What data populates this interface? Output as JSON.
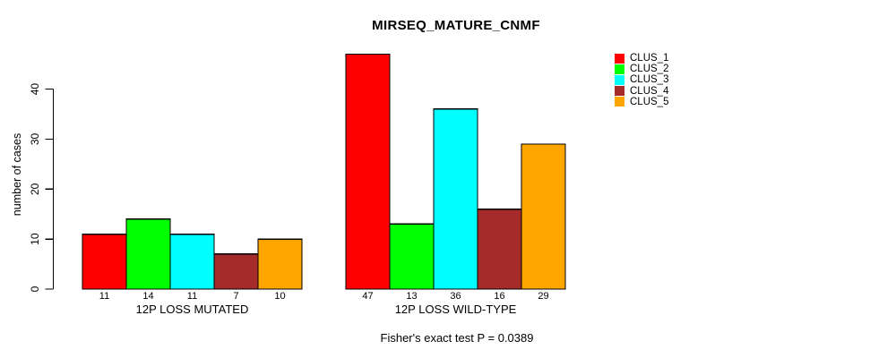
{
  "title": "MIRSEQ_MATURE_CNMF",
  "footer": "Fisher's exact test P = 0.0389",
  "chart_data": {
    "type": "bar",
    "title": "MIRSEQ_MATURE_CNMF",
    "ylabel": "number of cases",
    "xlabel": "",
    "ylim": [
      0,
      47
    ],
    "yticks": [
      0,
      10,
      20,
      30,
      40
    ],
    "grid": false,
    "legend_position": "top-right",
    "bar_value_labels": true,
    "categories": [
      "12P LOSS MUTATED",
      "12P LOSS WILD-TYPE"
    ],
    "series": [
      {
        "name": "CLUS_1",
        "color": "#FF0000",
        "values": [
          11,
          47
        ]
      },
      {
        "name": "CLUS_2",
        "color": "#00FF00",
        "values": [
          14,
          13
        ]
      },
      {
        "name": "CLUS_3",
        "color": "#00FFFF",
        "values": [
          11,
          36
        ]
      },
      {
        "name": "CLUS_4",
        "color": "#A52A2A",
        "values": [
          7,
          16
        ]
      },
      {
        "name": "CLUS_5",
        "color": "#FFA500",
        "values": [
          10,
          29
        ]
      }
    ],
    "annotation": "Fisher's exact test P = 0.0389"
  }
}
